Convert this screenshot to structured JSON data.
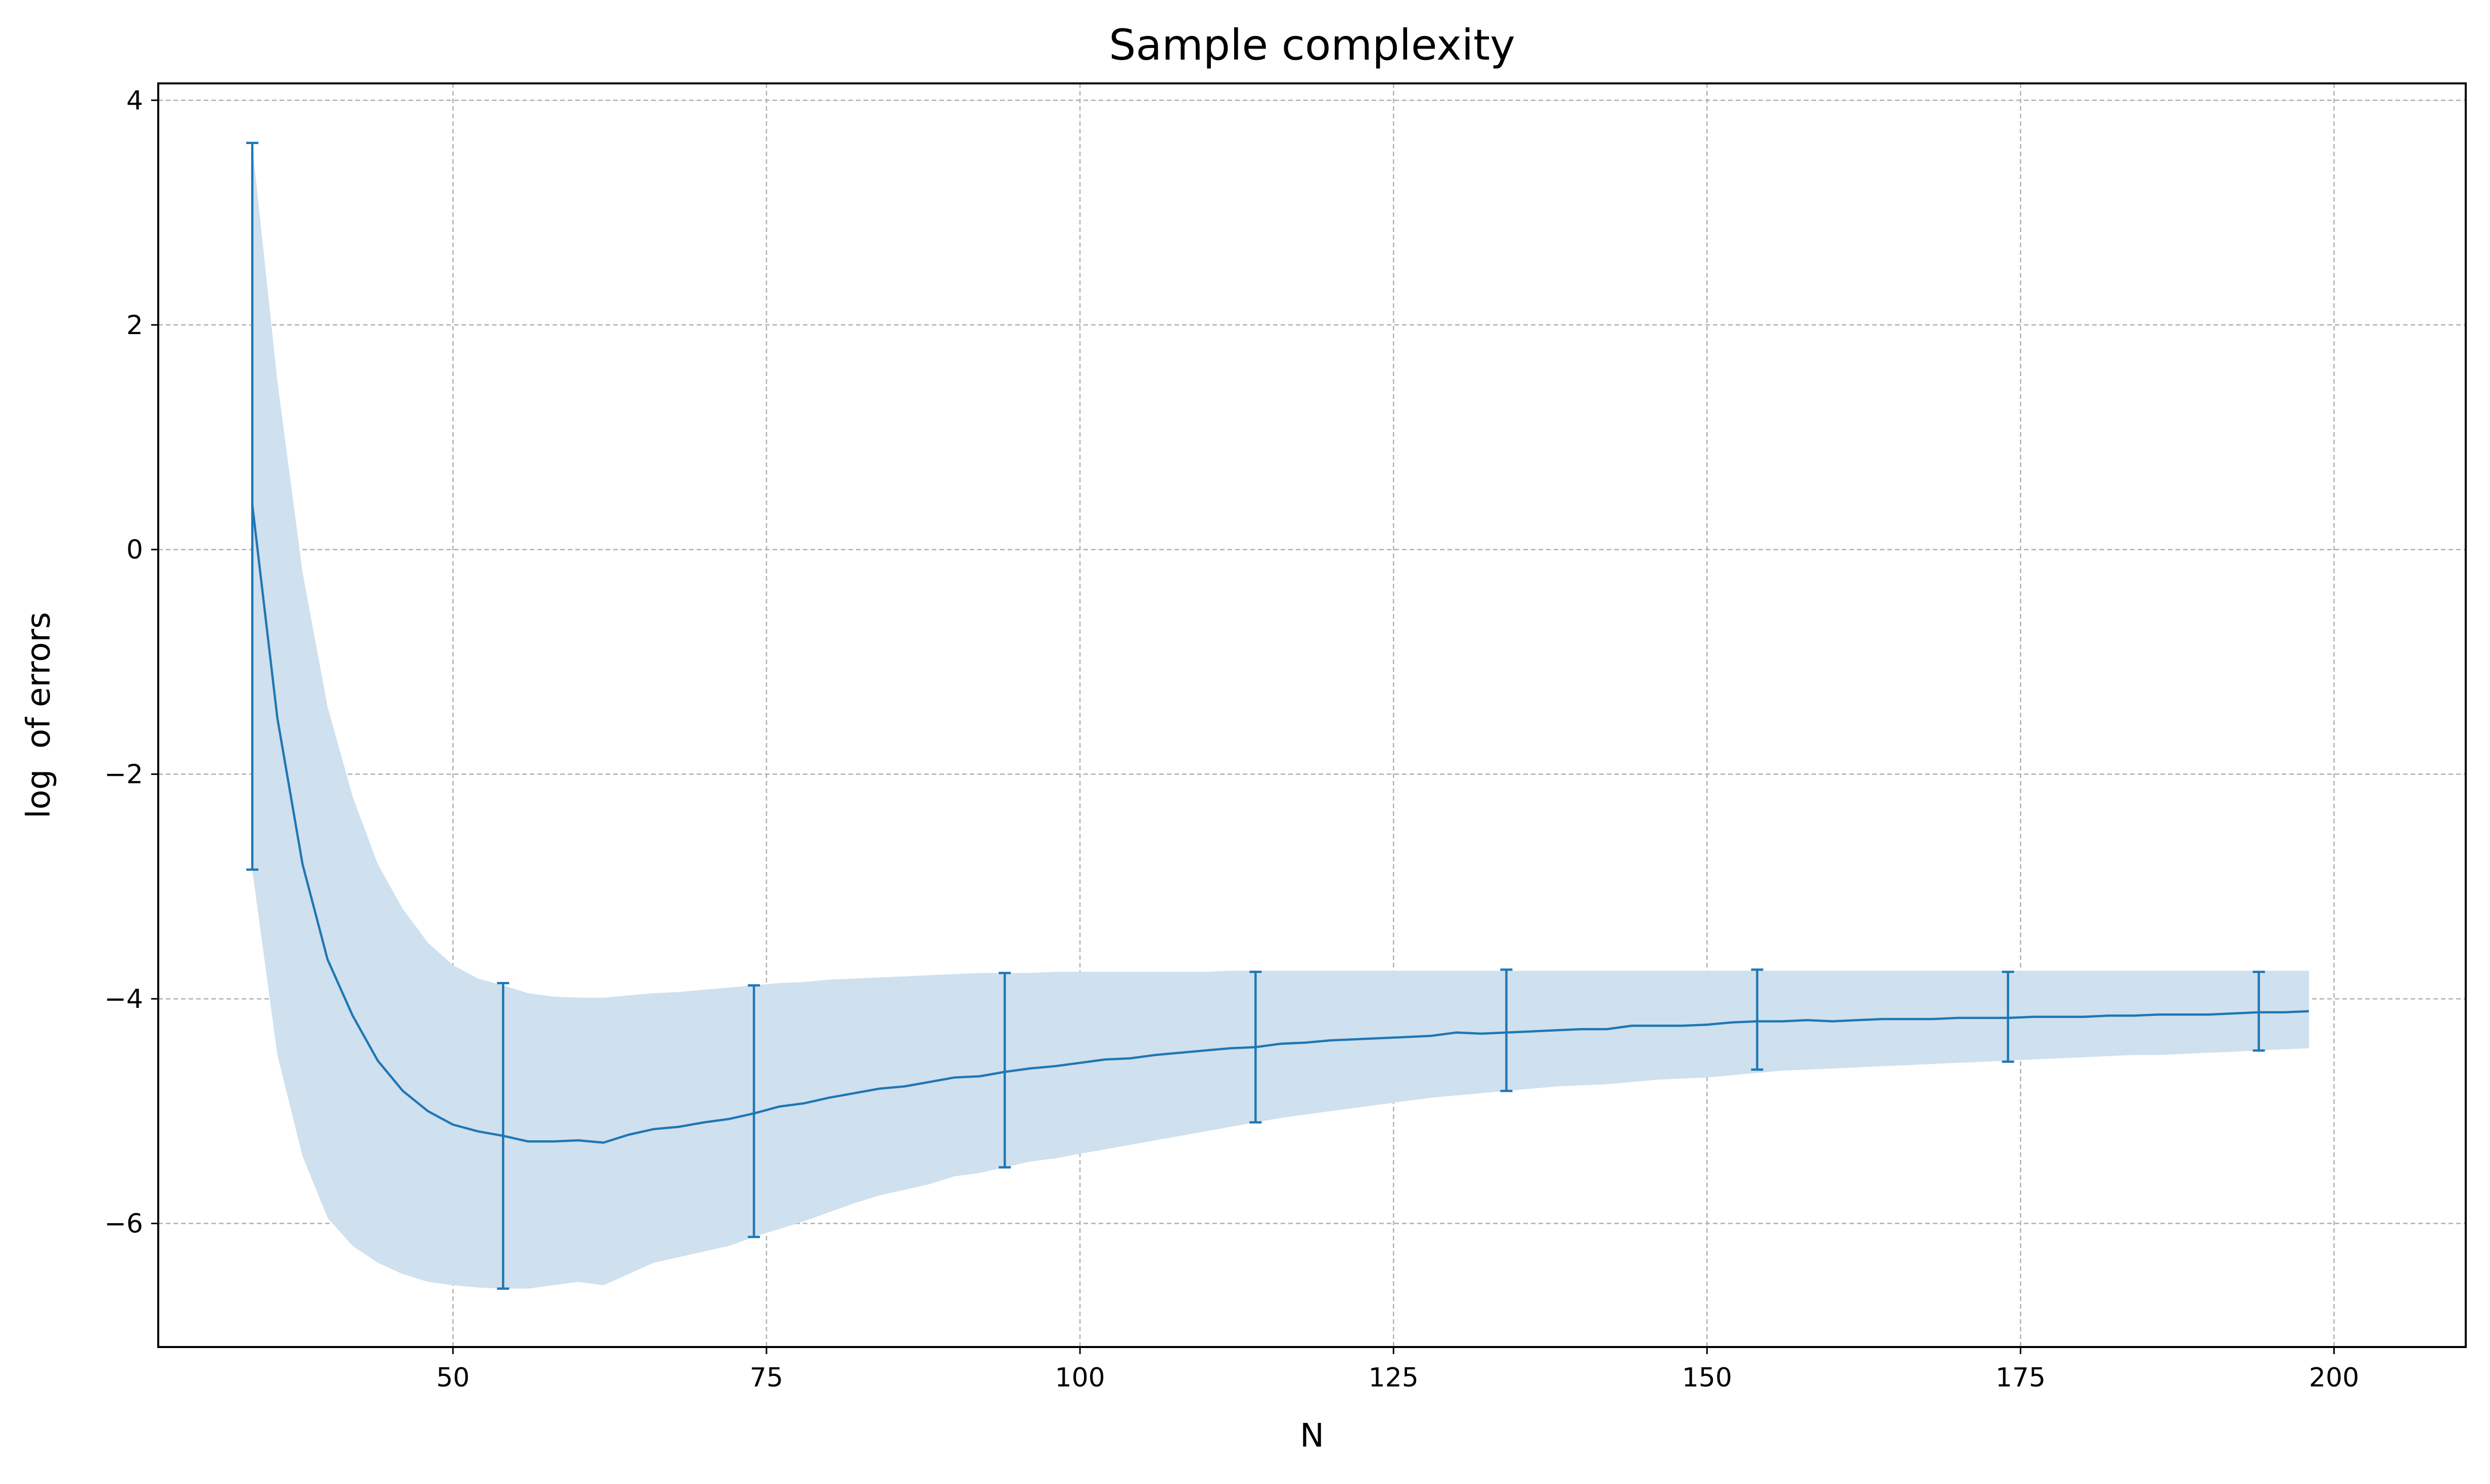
{
  "chart_data": {
    "type": "line",
    "title": "Sample complexity",
    "xlabel": "N",
    "ylabel": "log  of errors",
    "xlim": [
      26.5,
      210.5
    ],
    "ylim": [
      -7.1,
      4.15
    ],
    "xticks": [
      50,
      75,
      100,
      125,
      150,
      175,
      200
    ],
    "yticks": [
      -6,
      -4,
      -2,
      0,
      2,
      4
    ],
    "xtick_labels": [
      "50",
      "75",
      "100",
      "125",
      "150",
      "175",
      "200"
    ],
    "ytick_labels": [
      "−6",
      "−4",
      "−2",
      "0",
      "2",
      "4"
    ],
    "grid": true,
    "colors": {
      "line": "#1f77b4",
      "band": "#cfe0ee",
      "grid": "#b0b0b0"
    },
    "series": [
      {
        "x": [
          34,
          36,
          38,
          40,
          42,
          44,
          46,
          48,
          50,
          52,
          54,
          56,
          58,
          60,
          62,
          64,
          66,
          68,
          70,
          72,
          74,
          76,
          78,
          80,
          82,
          84,
          86,
          88,
          90,
          92,
          94,
          96,
          98,
          100,
          102,
          104,
          106,
          108,
          110,
          112,
          114,
          116,
          118,
          120,
          122,
          124,
          126,
          128,
          130,
          132,
          134,
          136,
          138,
          140,
          142,
          144,
          146,
          148,
          150,
          152,
          154,
          156,
          158,
          160,
          162,
          164,
          166,
          168,
          170,
          172,
          174,
          176,
          178,
          180,
          182,
          184,
          186,
          188,
          190,
          192,
          194,
          196,
          198
        ],
        "mean": [
          0.4,
          -1.5,
          -2.8,
          -3.65,
          -4.15,
          -4.55,
          -4.82,
          -5.0,
          -5.12,
          -5.18,
          -5.22,
          -5.27,
          -5.27,
          -5.26,
          -5.28,
          -5.21,
          -5.16,
          -5.14,
          -5.1,
          -5.07,
          -5.02,
          -4.96,
          -4.93,
          -4.88,
          -4.84,
          -4.8,
          -4.78,
          -4.74,
          -4.7,
          -4.69,
          -4.65,
          -4.62,
          -4.6,
          -4.57,
          -4.54,
          -4.53,
          -4.5,
          -4.48,
          -4.46,
          -4.44,
          -4.43,
          -4.4,
          -4.39,
          -4.37,
          -4.36,
          -4.35,
          -4.34,
          -4.33,
          -4.3,
          -4.31,
          -4.3,
          -4.29,
          -4.28,
          -4.27,
          -4.27,
          -4.24,
          -4.24,
          -4.24,
          -4.23,
          -4.21,
          -4.2,
          -4.2,
          -4.19,
          -4.2,
          -4.19,
          -4.18,
          -4.18,
          -4.18,
          -4.17,
          -4.17,
          -4.17,
          -4.16,
          -4.16,
          -4.16,
          -4.15,
          -4.15,
          -4.14,
          -4.14,
          -4.14,
          -4.13,
          -4.12,
          -4.12,
          -4.11
        ],
        "upper": [
          3.6,
          1.5,
          -0.2,
          -1.4,
          -2.2,
          -2.8,
          -3.2,
          -3.5,
          -3.7,
          -3.82,
          -3.88,
          -3.95,
          -3.98,
          -3.99,
          -3.99,
          -3.97,
          -3.95,
          -3.94,
          -3.92,
          -3.9,
          -3.88,
          -3.86,
          -3.85,
          -3.83,
          -3.82,
          -3.81,
          -3.8,
          -3.79,
          -3.78,
          -3.77,
          -3.77,
          -3.77,
          -3.76,
          -3.76,
          -3.76,
          -3.76,
          -3.76,
          -3.76,
          -3.76,
          -3.75,
          -3.75,
          -3.75,
          -3.75,
          -3.75,
          -3.75,
          -3.75,
          -3.75,
          -3.75,
          -3.75,
          -3.75,
          -3.75,
          -3.75,
          -3.75,
          -3.75,
          -3.75,
          -3.75,
          -3.75,
          -3.75,
          -3.75,
          -3.75,
          -3.75,
          -3.75,
          -3.75,
          -3.75,
          -3.75,
          -3.75,
          -3.75,
          -3.75,
          -3.75,
          -3.75,
          -3.75,
          -3.75,
          -3.75,
          -3.75,
          -3.75,
          -3.75,
          -3.75,
          -3.75,
          -3.75,
          -3.75,
          -3.75,
          -3.75,
          -3.75
        ],
        "lower": [
          -2.85,
          -4.5,
          -5.4,
          -5.95,
          -6.2,
          -6.35,
          -6.45,
          -6.52,
          -6.55,
          -6.57,
          -6.58,
          -6.58,
          -6.55,
          -6.52,
          -6.55,
          -6.45,
          -6.35,
          -6.3,
          -6.25,
          -6.2,
          -6.12,
          -6.05,
          -5.98,
          -5.9,
          -5.82,
          -5.75,
          -5.7,
          -5.65,
          -5.58,
          -5.55,
          -5.5,
          -5.45,
          -5.42,
          -5.38,
          -5.34,
          -5.3,
          -5.26,
          -5.22,
          -5.18,
          -5.14,
          -5.1,
          -5.06,
          -5.03,
          -5.0,
          -4.97,
          -4.94,
          -4.91,
          -4.88,
          -4.86,
          -4.84,
          -4.82,
          -4.8,
          -4.78,
          -4.77,
          -4.76,
          -4.74,
          -4.72,
          -4.71,
          -4.7,
          -4.68,
          -4.66,
          -4.64,
          -4.63,
          -4.62,
          -4.61,
          -4.6,
          -4.59,
          -4.58,
          -4.57,
          -4.56,
          -4.55,
          -4.54,
          -4.53,
          -4.52,
          -4.51,
          -4.5,
          -4.5,
          -4.49,
          -4.48,
          -4.47,
          -4.46,
          -4.45,
          -4.44
        ]
      }
    ],
    "errorbars": {
      "x": [
        34,
        54,
        74,
        94,
        114,
        134,
        154,
        174,
        194
      ],
      "low": [
        -2.85,
        -6.58,
        -6.12,
        -5.5,
        -5.1,
        -4.82,
        -4.63,
        -4.56,
        -4.46
      ],
      "high": [
        3.62,
        -3.86,
        -3.88,
        -3.77,
        -3.76,
        -3.74,
        -3.74,
        -3.76,
        -3.76
      ]
    }
  }
}
